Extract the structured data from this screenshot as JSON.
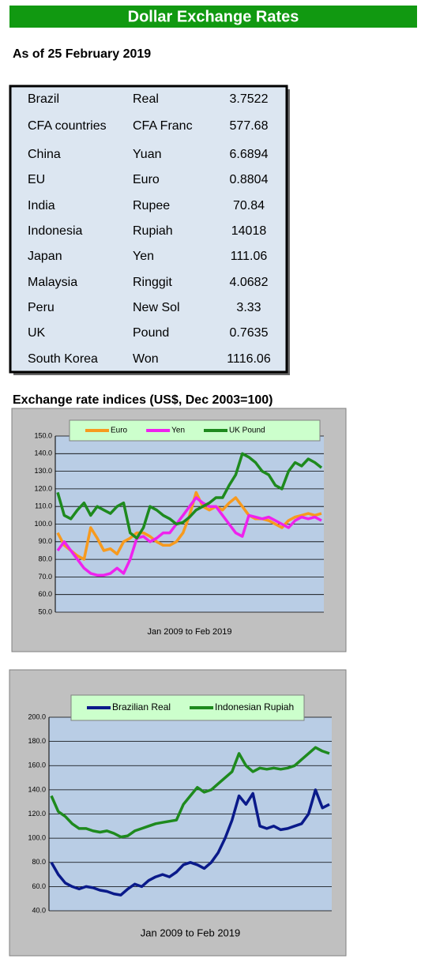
{
  "header": {
    "title": "Dollar Exchange Rates",
    "date": "As of 25 February 2019"
  },
  "table": {
    "rows": [
      [
        "Brazil",
        "Real",
        "3.7522"
      ],
      [
        "CFA countries",
        "CFA Franc",
        "577.68"
      ],
      [
        "China",
        "Yuan",
        "6.6894"
      ],
      [
        "EU",
        "Euro",
        "0.8804"
      ],
      [
        "India",
        "Rupee",
        "70.84"
      ],
      [
        "Indonesia",
        "Rupiah",
        "14018"
      ],
      [
        "Japan",
        "Yen",
        "111.06"
      ],
      [
        "Malaysia",
        "Ringgit",
        "4.0682"
      ],
      [
        "Peru",
        "New Sol",
        "3.33"
      ],
      [
        "UK",
        "Pound",
        "0.7635"
      ],
      [
        "South Korea",
        "Won",
        "1116.06"
      ]
    ]
  },
  "section_title": "Exchange rate indices (US$, Dec 2003=100)",
  "chart_data": [
    {
      "type": "line",
      "x_label": "Jan 2009  to Feb 2019",
      "grid": true,
      "legend": "top",
      "categories": [
        null,
        null,
        null,
        null,
        null,
        null,
        null,
        null,
        null,
        null,
        null,
        null,
        null,
        null,
        null,
        null,
        null,
        null,
        null,
        null,
        null,
        null,
        null,
        null,
        null,
        null,
        null,
        null,
        null,
        null,
        null,
        null,
        null,
        null,
        null,
        null,
        null,
        null,
        null,
        null,
        null
      ],
      "ylim": [
        50,
        150
      ],
      "yticks": [
        {
          "value": 50,
          "label": "50.0"
        },
        {
          "value": 60,
          "label": "60.0"
        },
        {
          "value": 70,
          "label": "70.0"
        },
        {
          "value": 80,
          "label": "80.0"
        },
        {
          "value": 90,
          "label": "90.0"
        },
        {
          "value": 100,
          "label": "100.0"
        },
        {
          "value": 110,
          "label": "110.0"
        },
        {
          "value": 120,
          "label": "120.0"
        },
        {
          "value": 130,
          "label": "130.0"
        },
        {
          "value": 140,
          "label": "140.0"
        },
        {
          "value": 150,
          "label": "150.0"
        }
      ],
      "series": [
        {
          "name": "Euro",
          "color": "#f79a1e",
          "values": [
            95,
            88,
            85,
            82,
            80,
            98,
            92,
            85,
            86,
            83,
            90,
            92,
            95,
            95,
            93,
            90,
            88,
            88,
            90,
            95,
            105,
            118,
            110,
            108,
            110,
            108,
            112,
            115,
            110,
            105,
            103,
            103,
            102,
            100,
            98,
            102,
            104,
            105,
            106,
            105,
            106
          ]
        },
        {
          "name": "Yen",
          "color": "#ee22ee",
          "values": [
            85,
            90,
            85,
            80,
            75,
            72,
            71,
            71,
            72,
            75,
            72,
            80,
            92,
            93,
            90,
            92,
            95,
            95,
            100,
            105,
            110,
            115,
            112,
            110,
            110,
            105,
            100,
            95,
            93,
            105,
            104,
            103,
            104,
            102,
            100,
            98,
            102,
            104,
            103,
            104,
            102
          ]
        },
        {
          "name": "UK Pound",
          "color": "#1e8a1e",
          "values": [
            118,
            105,
            103,
            108,
            112,
            105,
            110,
            108,
            106,
            110,
            112,
            95,
            92,
            98,
            110,
            108,
            105,
            103,
            100,
            101,
            104,
            108,
            110,
            112,
            115,
            115,
            122,
            128,
            140,
            138,
            135,
            130,
            128,
            122,
            120,
            130,
            135,
            133,
            137,
            135,
            132
          ]
        }
      ]
    },
    {
      "type": "line",
      "x_label": "Jan 2009  to Feb 2019",
      "grid": true,
      "legend": "top",
      "categories": [
        null,
        null,
        null,
        null,
        null,
        null,
        null,
        null,
        null,
        null,
        null,
        null,
        null,
        null,
        null,
        null,
        null,
        null,
        null,
        null,
        null,
        null,
        null,
        null,
        null,
        null,
        null,
        null,
        null,
        null,
        null,
        null,
        null,
        null,
        null,
        null,
        null,
        null,
        null,
        null,
        null
      ],
      "ylim": [
        40,
        200
      ],
      "yticks": [
        {
          "value": 40,
          "label": "40.0"
        },
        {
          "value": 60,
          "label": "60.0"
        },
        {
          "value": 80,
          "label": "80.0"
        },
        {
          "value": 100,
          "label": "100.0"
        },
        {
          "value": 120,
          "label": "120.0"
        },
        {
          "value": 140,
          "label": "140.0"
        },
        {
          "value": 160,
          "label": "160.0"
        },
        {
          "value": 180,
          "label": "180.0"
        },
        {
          "value": 200,
          "label": "200.0"
        }
      ],
      "series": [
        {
          "name": "Brazilian Real",
          "color": "#0a1a8a",
          "values": [
            80,
            70,
            63,
            60,
            58,
            60,
            59,
            57,
            56,
            54,
            53,
            58,
            62,
            60,
            65,
            68,
            70,
            68,
            72,
            78,
            80,
            78,
            75,
            80,
            88,
            100,
            115,
            135,
            128,
            137,
            110,
            108,
            110,
            107,
            108,
            110,
            112,
            120,
            140,
            125,
            128
          ]
        },
        {
          "name": "Indonesian Rupiah",
          "color": "#1e8a1e",
          "values": [
            135,
            122,
            118,
            112,
            108,
            108,
            106,
            105,
            106,
            104,
            101,
            102,
            106,
            108,
            110,
            112,
            113,
            114,
            115,
            128,
            135,
            142,
            138,
            140,
            145,
            150,
            155,
            170,
            160,
            155,
            158,
            157,
            158,
            157,
            158,
            160,
            165,
            170,
            175,
            172,
            170
          ]
        }
      ]
    }
  ]
}
